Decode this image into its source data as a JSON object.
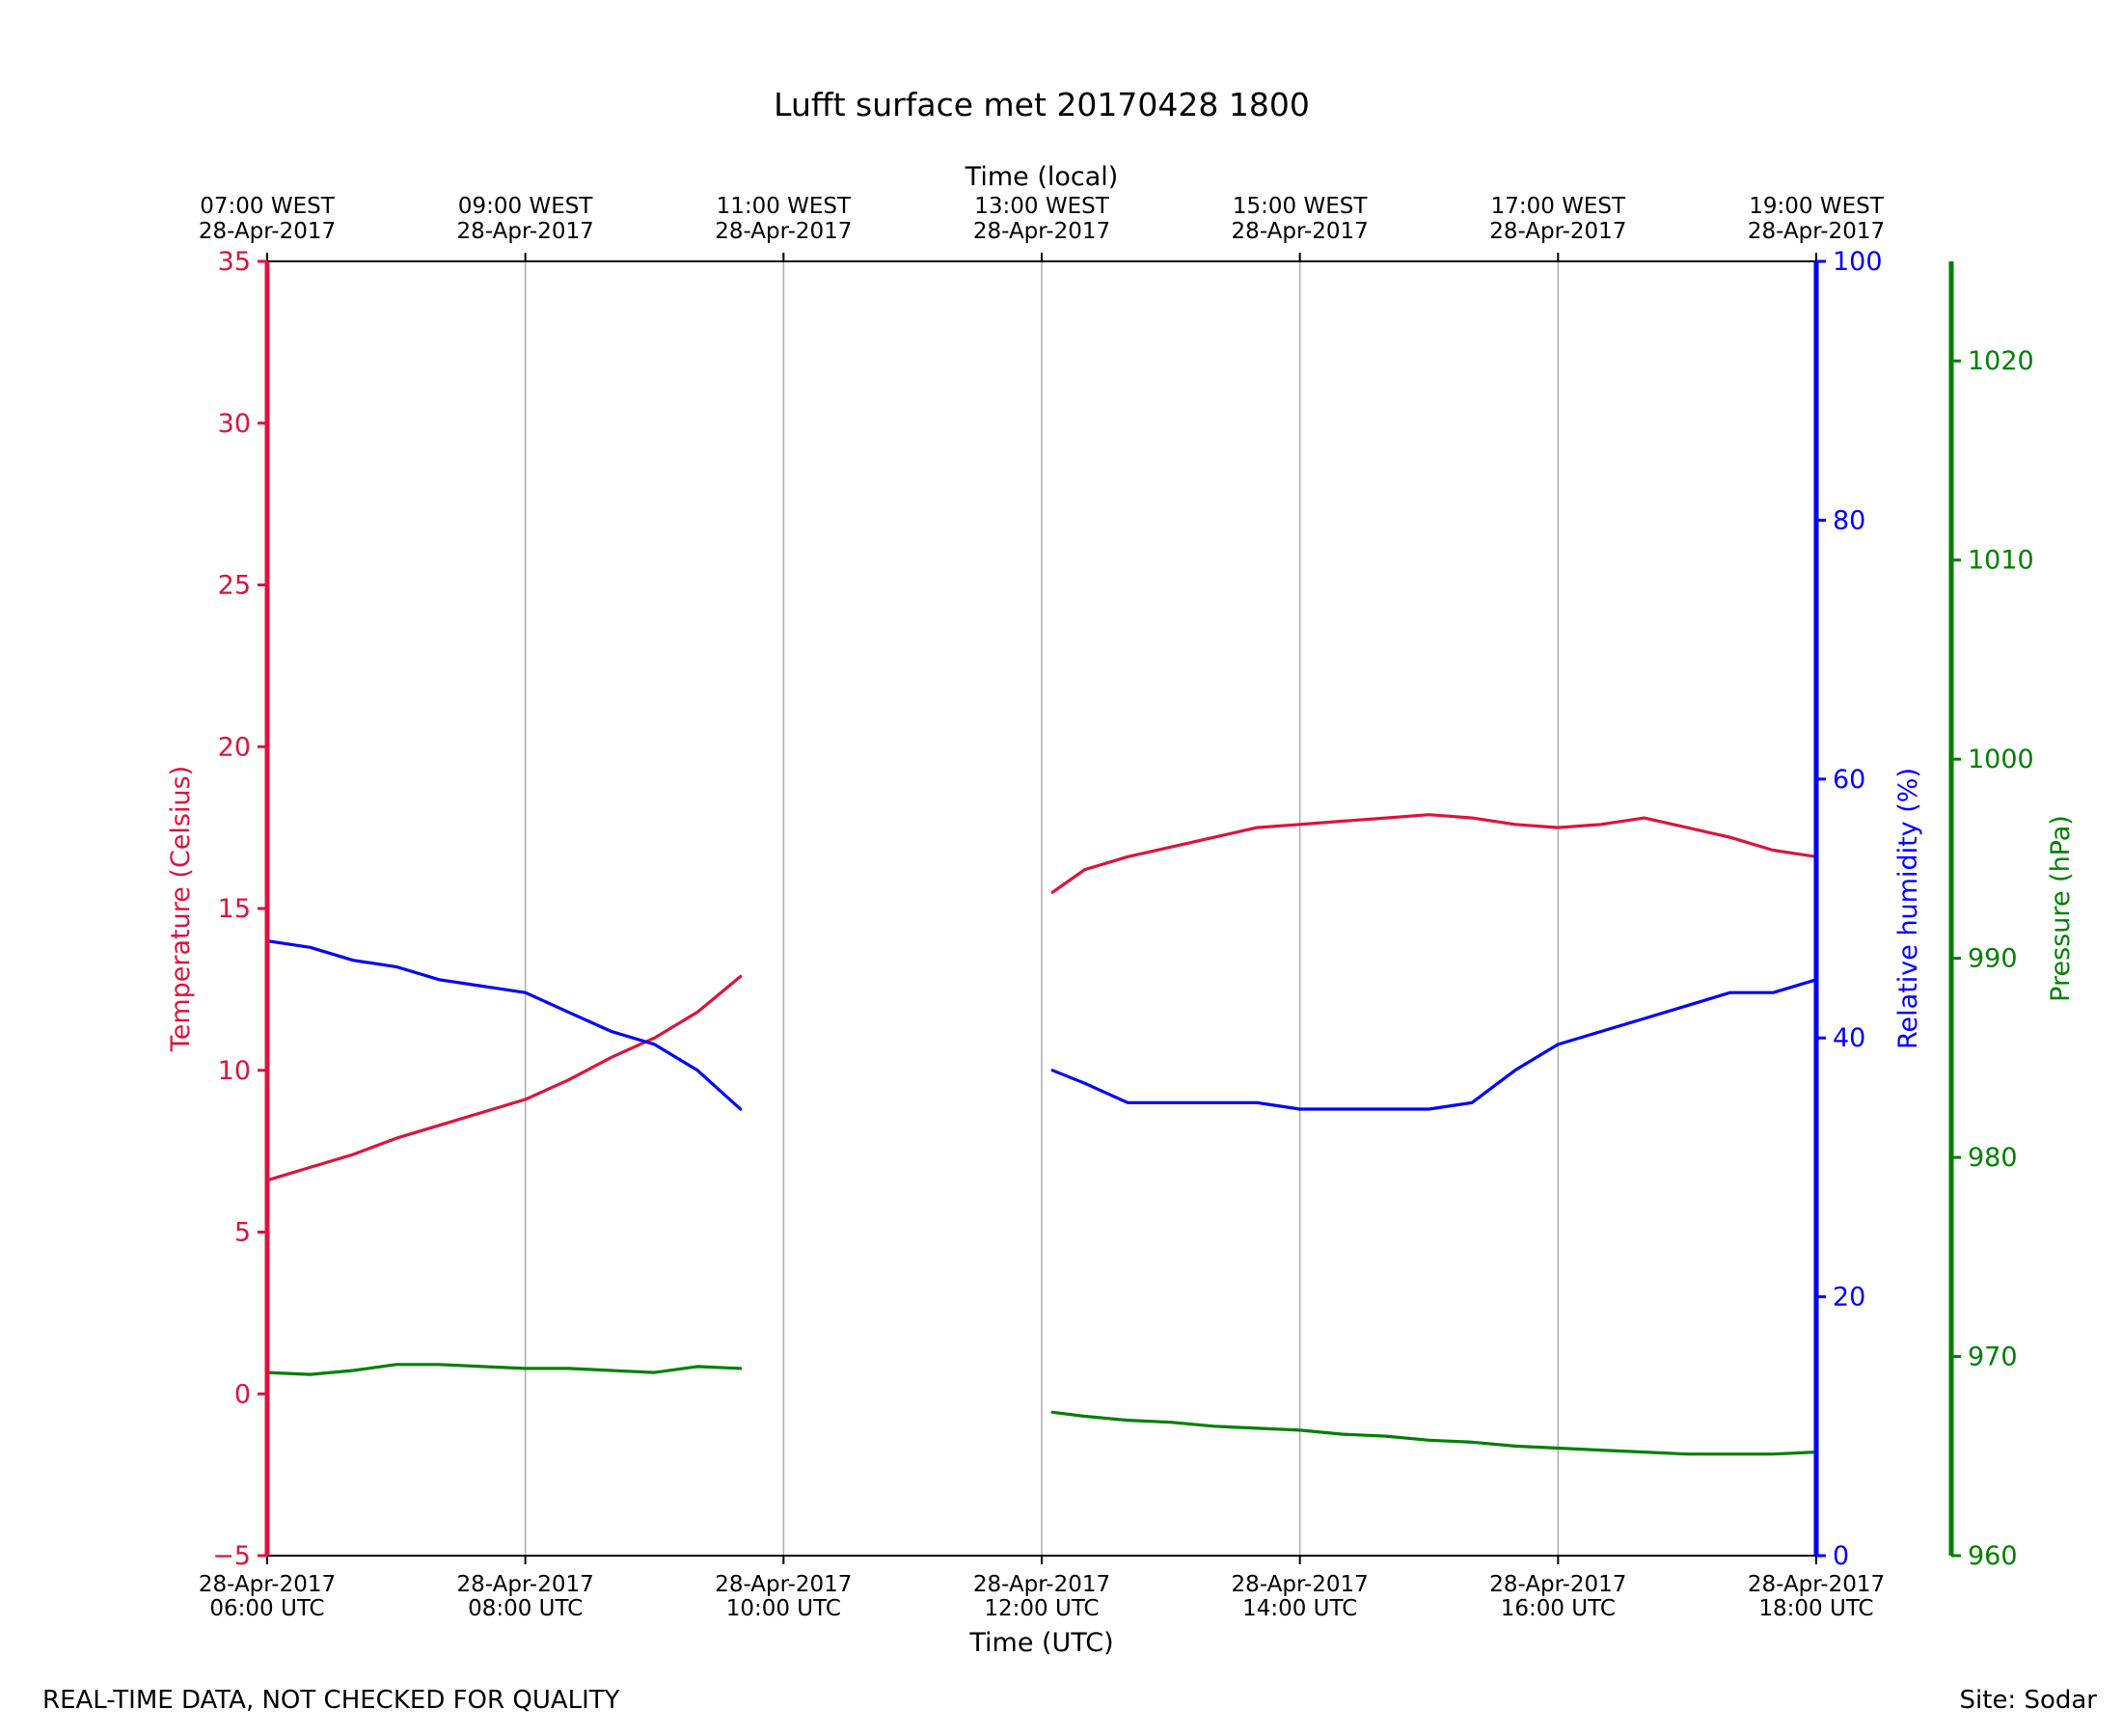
{
  "footer": {
    "left": "REAL-TIME DATA, NOT CHECKED FOR QUALITY",
    "right": "Site: Sodar"
  },
  "colors": {
    "temperature": "#dc143c",
    "humidity": "#0000ff",
    "pressure": "#008000",
    "grid": "#b0b0b0"
  },
  "chart_data": {
    "type": "line",
    "title": "Lufft surface met 20170428 1800",
    "xlabel": "Time (UTC)",
    "xlabel_top": "Time (local)",
    "xlim": [
      "2017-04-28T06:00Z",
      "2017-04-28T18:00Z"
    ],
    "x_ticks_bottom": [
      {
        "line1": "28-Apr-2017",
        "line2": "06:00 UTC"
      },
      {
        "line1": "28-Apr-2017",
        "line2": "08:00 UTC"
      },
      {
        "line1": "28-Apr-2017",
        "line2": "10:00 UTC"
      },
      {
        "line1": "28-Apr-2017",
        "line2": "12:00 UTC"
      },
      {
        "line1": "28-Apr-2017",
        "line2": "14:00 UTC"
      },
      {
        "line1": "28-Apr-2017",
        "line2": "16:00 UTC"
      },
      {
        "line1": "28-Apr-2017",
        "line2": "18:00 UTC"
      }
    ],
    "x_ticks_top": [
      {
        "line1": "07:00 WEST",
        "line2": "28-Apr-2017"
      },
      {
        "line1": "09:00 WEST",
        "line2": "28-Apr-2017"
      },
      {
        "line1": "11:00 WEST",
        "line2": "28-Apr-2017"
      },
      {
        "line1": "13:00 WEST",
        "line2": "28-Apr-2017"
      },
      {
        "line1": "15:00 WEST",
        "line2": "28-Apr-2017"
      },
      {
        "line1": "17:00 WEST",
        "line2": "28-Apr-2017"
      },
      {
        "line1": "19:00 WEST",
        "line2": "28-Apr-2017"
      }
    ],
    "grid": "vertical",
    "axes": {
      "temperature": {
        "label": "Temperature (Celsius)",
        "ylim": [
          -5,
          35
        ],
        "ticks": [
          -5,
          0,
          5,
          10,
          15,
          20,
          25,
          30,
          35
        ],
        "tick_labels": [
          "−5",
          "0",
          "5",
          "10",
          "15",
          "20",
          "25",
          "30",
          "35"
        ],
        "side": "left"
      },
      "humidity": {
        "label": "Relative humidity (%)",
        "ylim": [
          0,
          100
        ],
        "ticks": [
          0,
          20,
          40,
          60,
          80,
          100
        ],
        "tick_labels": [
          "0",
          "20",
          "40",
          "60",
          "80",
          "100"
        ],
        "side": "right"
      },
      "pressure": {
        "label": "Pressure (hPa)",
        "ylim": [
          960,
          1025
        ],
        "ticks": [
          960,
          970,
          980,
          990,
          1000,
          1010,
          1020
        ],
        "tick_labels": [
          "960",
          "970",
          "980",
          "990",
          "1000",
          "1010",
          "1020"
        ],
        "side": "right-outer"
      }
    },
    "series": [
      {
        "axis": "temperature",
        "segments": [
          {
            "x": [
              "06:00",
              "06:20",
              "06:40",
              "07:00",
              "07:20",
              "07:40",
              "08:00",
              "08:20",
              "08:40",
              "09:00",
              "09:20",
              "09:40"
            ],
            "y": [
              6.6,
              7.0,
              7.4,
              7.9,
              8.3,
              8.7,
              9.1,
              9.7,
              10.4,
              11.0,
              11.8,
              12.9
            ]
          },
          {
            "x": [
              "12:05",
              "12:20",
              "12:40",
              "13:00",
              "13:20",
              "13:40",
              "14:00",
              "14:20",
              "14:40",
              "15:00",
              "15:20",
              "15:40",
              "16:00",
              "16:20",
              "16:40",
              "17:00",
              "17:20",
              "17:40",
              "18:00"
            ],
            "y": [
              15.5,
              16.2,
              16.6,
              16.9,
              17.2,
              17.5,
              17.6,
              17.7,
              17.8,
              17.9,
              17.8,
              17.6,
              17.5,
              17.6,
              17.8,
              17.5,
              17.2,
              16.8,
              16.6
            ]
          }
        ]
      },
      {
        "axis": "humidity",
        "segments": [
          {
            "x": [
              "06:00",
              "06:20",
              "06:40",
              "07:00",
              "07:20",
              "07:40",
              "08:00",
              "08:20",
              "08:40",
              "09:00",
              "09:20",
              "09:40"
            ],
            "y": [
              47.5,
              47.0,
              46.0,
              45.5,
              44.5,
              44.0,
              43.5,
              42.0,
              40.5,
              39.5,
              37.5,
              34.5
            ]
          },
          {
            "x": [
              "12:05",
              "12:20",
              "12:40",
              "13:00",
              "13:20",
              "13:40",
              "14:00",
              "14:20",
              "14:40",
              "15:00",
              "15:20",
              "15:40",
              "16:00",
              "16:20",
              "16:40",
              "17:00",
              "17:20",
              "17:40",
              "18:00"
            ],
            "y": [
              37.5,
              36.5,
              35.0,
              35.0,
              35.0,
              35.0,
              34.5,
              34.5,
              34.5,
              34.5,
              35.0,
              37.5,
              39.5,
              40.5,
              41.5,
              42.5,
              43.5,
              43.5,
              44.5
            ]
          }
        ]
      },
      {
        "axis": "pressure",
        "segments": [
          {
            "x": [
              "06:00",
              "06:20",
              "06:40",
              "07:00",
              "07:20",
              "07:40",
              "08:00",
              "08:20",
              "08:40",
              "09:00",
              "09:20",
              "09:40"
            ],
            "y": [
              969.2,
              969.1,
              969.3,
              969.6,
              969.6,
              969.5,
              969.4,
              969.4,
              969.3,
              969.2,
              969.5,
              969.4
            ]
          },
          {
            "x": [
              "12:05",
              "12:20",
              "12:40",
              "13:00",
              "13:20",
              "13:40",
              "14:00",
              "14:20",
              "14:40",
              "15:00",
              "15:20",
              "15:40",
              "16:00",
              "16:20",
              "16:40",
              "17:00",
              "17:20",
              "17:40",
              "18:00"
            ],
            "y": [
              967.2,
              967.0,
              966.8,
              966.7,
              966.5,
              966.4,
              966.3,
              966.1,
              966.0,
              965.8,
              965.7,
              965.5,
              965.4,
              965.3,
              965.2,
              965.1,
              965.1,
              965.1,
              965.2
            ]
          }
        ]
      }
    ]
  }
}
